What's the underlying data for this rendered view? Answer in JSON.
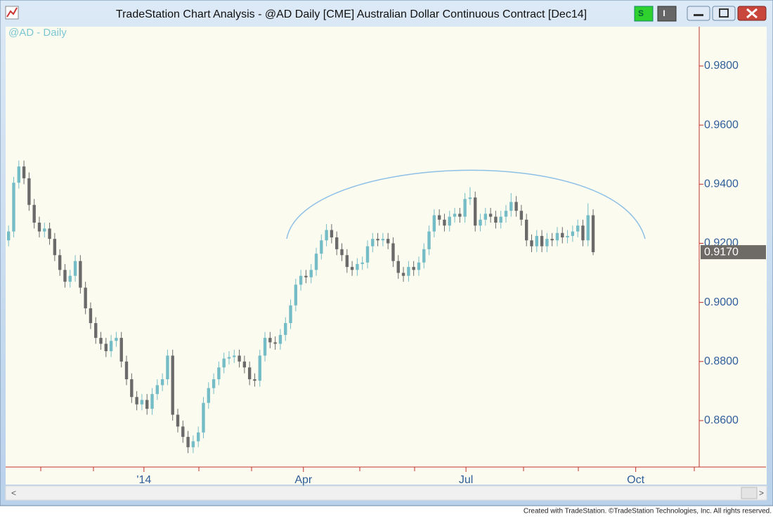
{
  "window": {
    "title": "TradeStation Chart Analysis - @AD Daily [CME] Australian Dollar Continuous Contract [Dec14]",
    "buttons": [
      "S",
      "I"
    ]
  },
  "footer": "Created with TradeStation. ©TradeStation Technologies, Inc. All rights reserved.",
  "chart_data": {
    "type": "candlestick",
    "title": "@AD - Daily",
    "up_color": "#74bcc6",
    "down_color": "#6a6a6a",
    "open": [
      0.921,
      0.924,
      0.9405,
      0.946,
      0.942,
      0.933,
      0.927,
      0.924,
      0.925,
      0.9215,
      0.916,
      0.911,
      0.907,
      0.909,
      0.914,
      0.905,
      0.898,
      0.893,
      0.888,
      0.886,
      0.8835,
      0.887,
      0.888,
      0.88,
      0.874,
      0.868,
      0.8655,
      0.867,
      0.864,
      0.869,
      0.872,
      0.874,
      0.882,
      0.862,
      0.858,
      0.8545,
      0.851,
      0.853,
      0.856,
      0.866,
      0.871,
      0.874,
      0.878,
      0.881,
      0.8815,
      0.882,
      0.88,
      0.878,
      0.874,
      0.8735,
      0.882,
      0.888,
      0.8865,
      0.886,
      0.889,
      0.893,
      0.899,
      0.906,
      0.909,
      0.9085,
      0.911,
      0.9165,
      0.921,
      0.9245,
      0.922,
      0.918,
      0.916,
      0.912,
      0.911,
      0.913,
      0.9135,
      0.919,
      0.9215,
      0.921,
      0.9215,
      0.92,
      0.914,
      0.91,
      0.909,
      0.912,
      0.911,
      0.9135,
      0.918,
      0.924,
      0.9295,
      0.928,
      0.926,
      0.929,
      0.93,
      0.929,
      0.935,
      0.9355,
      0.926,
      0.928,
      0.93,
      0.929,
      0.927,
      0.929,
      0.931,
      0.934,
      0.931,
      0.928,
      0.921,
      0.919,
      0.9225,
      0.919,
      0.9215,
      0.921,
      0.9235,
      0.922,
      0.9225,
      0.924,
      0.926,
      0.921,
      0.9295
    ],
    "high": [
      0.926,
      0.9425,
      0.948,
      0.948,
      0.944,
      0.935,
      0.929,
      0.927,
      0.927,
      0.9235,
      0.918,
      0.913,
      0.911,
      0.916,
      0.916,
      0.907,
      0.9,
      0.895,
      0.89,
      0.888,
      0.889,
      0.89,
      0.89,
      0.882,
      0.876,
      0.87,
      0.869,
      0.869,
      0.871,
      0.874,
      0.876,
      0.884,
      0.884,
      0.864,
      0.86,
      0.8565,
      0.855,
      0.858,
      0.868,
      0.873,
      0.876,
      0.88,
      0.883,
      0.8835,
      0.884,
      0.884,
      0.882,
      0.88,
      0.876,
      0.884,
      0.89,
      0.89,
      0.8885,
      0.891,
      0.895,
      0.901,
      0.908,
      0.911,
      0.911,
      0.913,
      0.9185,
      0.923,
      0.9265,
      0.9265,
      0.924,
      0.92,
      0.918,
      0.914,
      0.915,
      0.9155,
      0.921,
      0.9235,
      0.9235,
      0.9235,
      0.9235,
      0.922,
      0.916,
      0.912,
      0.914,
      0.914,
      0.9155,
      0.92,
      0.926,
      0.9315,
      0.9315,
      0.93,
      0.931,
      0.932,
      0.932,
      0.937,
      0.939,
      0.9375,
      0.93,
      0.932,
      0.932,
      0.931,
      0.931,
      0.933,
      0.937,
      0.936,
      0.933,
      0.93,
      0.923,
      0.9245,
      0.9245,
      0.9235,
      0.9235,
      0.9255,
      0.9255,
      0.9245,
      0.926,
      0.928,
      0.928,
      0.9335,
      0.9315
    ],
    "low": [
      0.919,
      0.922,
      0.9385,
      0.94,
      0.931,
      0.925,
      0.922,
      0.922,
      0.9195,
      0.914,
      0.909,
      0.905,
      0.905,
      0.907,
      0.903,
      0.896,
      0.891,
      0.886,
      0.884,
      0.8815,
      0.8815,
      0.885,
      0.878,
      0.872,
      0.866,
      0.8635,
      0.8635,
      0.862,
      0.862,
      0.867,
      0.87,
      0.872,
      0.86,
      0.856,
      0.8525,
      0.849,
      0.849,
      0.851,
      0.854,
      0.864,
      0.869,
      0.872,
      0.876,
      0.879,
      0.8795,
      0.878,
      0.876,
      0.872,
      0.8715,
      0.8715,
      0.88,
      0.8845,
      0.884,
      0.884,
      0.887,
      0.891,
      0.897,
      0.904,
      0.9065,
      0.9065,
      0.909,
      0.9145,
      0.919,
      0.92,
      0.916,
      0.914,
      0.91,
      0.909,
      0.909,
      0.911,
      0.9115,
      0.917,
      0.919,
      0.919,
      0.918,
      0.912,
      0.908,
      0.907,
      0.907,
      0.909,
      0.909,
      0.9115,
      0.916,
      0.922,
      0.926,
      0.924,
      0.924,
      0.927,
      0.927,
      0.927,
      0.933,
      0.924,
      0.924,
      0.926,
      0.927,
      0.925,
      0.925,
      0.927,
      0.929,
      0.929,
      0.926,
      0.919,
      0.917,
      0.917,
      0.917,
      0.917,
      0.919,
      0.919,
      0.92,
      0.92,
      0.9205,
      0.922,
      0.919,
      0.919,
      0.916
    ],
    "close": [
      0.924,
      0.9405,
      0.946,
      0.942,
      0.933,
      0.927,
      0.924,
      0.925,
      0.9215,
      0.916,
      0.911,
      0.907,
      0.909,
      0.914,
      0.905,
      0.898,
      0.893,
      0.888,
      0.886,
      0.8835,
      0.887,
      0.888,
      0.88,
      0.874,
      0.868,
      0.8655,
      0.867,
      0.864,
      0.869,
      0.872,
      0.874,
      0.882,
      0.862,
      0.858,
      0.8545,
      0.851,
      0.853,
      0.856,
      0.866,
      0.871,
      0.874,
      0.878,
      0.881,
      0.8815,
      0.882,
      0.88,
      0.878,
      0.874,
      0.8735,
      0.882,
      0.888,
      0.8865,
      0.886,
      0.889,
      0.893,
      0.899,
      0.906,
      0.909,
      0.9085,
      0.911,
      0.9165,
      0.921,
      0.9245,
      0.922,
      0.918,
      0.916,
      0.912,
      0.911,
      0.913,
      0.9135,
      0.919,
      0.9215,
      0.921,
      0.9215,
      0.92,
      0.914,
      0.91,
      0.909,
      0.912,
      0.911,
      0.9135,
      0.918,
      0.924,
      0.9295,
      0.928,
      0.926,
      0.929,
      0.93,
      0.929,
      0.935,
      0.9355,
      0.926,
      0.928,
      0.93,
      0.929,
      0.927,
      0.929,
      0.931,
      0.934,
      0.931,
      0.928,
      0.921,
      0.919,
      0.9225,
      0.919,
      0.9215,
      0.921,
      0.9235,
      0.922,
      0.9225,
      0.924,
      0.926,
      0.921,
      0.9295,
      0.917
    ],
    "last_label": "0.9170",
    "ylim": [
      0.8443,
      0.9933
    ],
    "yticks": [
      {
        "value": 0.86,
        "label": "0.8600"
      },
      {
        "value": 0.88,
        "label": "0.8800"
      },
      {
        "value": 0.9,
        "label": "0.9000"
      },
      {
        "value": 0.92,
        "label": "0.9200"
      },
      {
        "value": 0.94,
        "label": "0.9400"
      },
      {
        "value": 0.96,
        "label": "0.9600"
      },
      {
        "value": 0.98,
        "label": "0.9800"
      }
    ],
    "xlim": [
      -0.3,
      134
    ],
    "xticks": [
      {
        "value": 26.4,
        "label": "'14"
      },
      {
        "value": 57.5,
        "label": "Apr"
      },
      {
        "value": 89.2,
        "label": "Jul"
      },
      {
        "value": 122.3,
        "label": "Oct"
      }
    ]
  }
}
